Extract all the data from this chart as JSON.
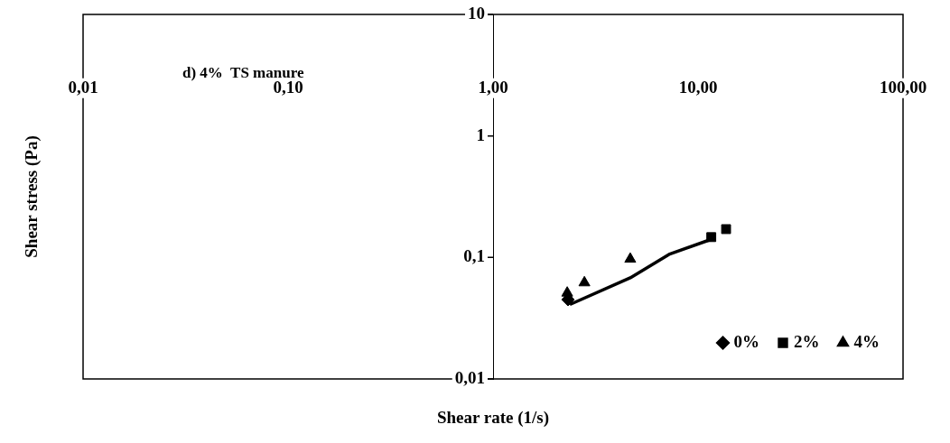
{
  "chart_data": {
    "type": "scatter",
    "title": null,
    "xlabel": "Shear rate (1/s)",
    "ylabel": "Shear stress (Pa)",
    "annotations": [
      "d) 4%  TS manure"
    ],
    "log": "xy",
    "grid": false,
    "legend": "bottom right",
    "xlim": [
      0.01,
      100
    ],
    "xticks": [
      {
        "value": 0.01,
        "label": "0,01"
      },
      {
        "value": 0.1,
        "label": "0,10"
      },
      {
        "value": 1,
        "label": "1,00"
      },
      {
        "value": 10,
        "label": "10,00"
      },
      {
        "value": 100,
        "label": "100,00"
      }
    ],
    "ylim": [
      0.01,
      10
    ],
    "yticks": [
      {
        "value": 0.01,
        "label": "0,01"
      },
      {
        "value": 0.1,
        "label": "0,1"
      },
      1,
      10
    ],
    "series": [
      {
        "name": "0%",
        "color": "#000000",
        "marker": "diamond",
        "x": [
          2.32
        ],
        "values": [
          0.045
        ]
      },
      {
        "name": "2%",
        "color": "#000000",
        "marker": "square",
        "x": [
          11.6,
          13.7
        ],
        "values": [
          0.147,
          0.171
        ]
      },
      {
        "name": "4%",
        "color": "#000000",
        "marker": "triangle",
        "x": [
          2.3,
          2.79,
          4.67
        ],
        "values": [
          0.051,
          0.062,
          0.097
        ]
      },
      {
        "type": "line",
        "color": "#000000",
        "marker": "none",
        "x": [
          2.37,
          4.67,
          7.22,
          11.6
        ],
        "values": [
          0.041,
          0.068,
          0.106,
          0.141
        ]
      }
    ]
  }
}
